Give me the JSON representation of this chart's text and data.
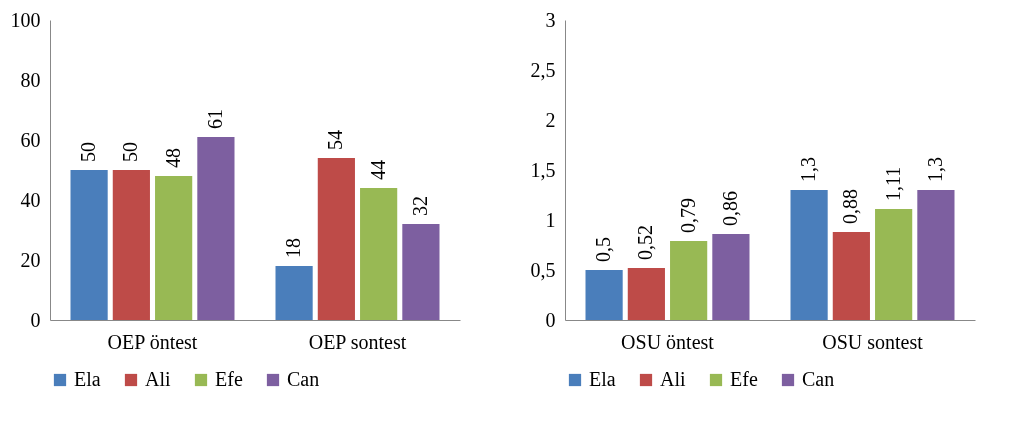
{
  "chart_data": [
    {
      "type": "bar",
      "categories": [
        "OEP öntest",
        "OEP sontest"
      ],
      "ylim": [
        0,
        100
      ],
      "yticks": [
        0,
        20,
        40,
        60,
        80,
        100
      ],
      "grid": false,
      "legend": "bottom",
      "data_labels": true,
      "series": [
        {
          "name": "Ela",
          "color": "#4a7ebb",
          "values": [
            50,
            18
          ]
        },
        {
          "name": "Ali",
          "color": "#be4b48",
          "values": [
            50,
            54
          ]
        },
        {
          "name": "Efe",
          "color": "#98b954",
          "values": [
            48,
            44
          ]
        },
        {
          "name": "Can",
          "color": "#7d5fa0",
          "values": [
            61,
            32
          ]
        }
      ]
    },
    {
      "type": "bar",
      "categories": [
        "OSU öntest",
        "OSU sontest"
      ],
      "ylim": [
        0,
        3
      ],
      "yticks": [
        0,
        {
          "value": 0.5,
          "label": "0,5"
        },
        1,
        {
          "value": 1.5,
          "label": "1,5"
        },
        2,
        {
          "value": 2.5,
          "label": "2,5"
        },
        3
      ],
      "grid": false,
      "legend": "bottom",
      "series": [
        {
          "name": "Ela",
          "color": "#4a7ebb",
          "values": [
            0.5,
            1.3
          ],
          "value_labels": [
            "0,5",
            "1,3"
          ]
        },
        {
          "name": "Ali",
          "color": "#be4b48",
          "values": [
            0.52,
            0.88
          ],
          "value_labels": [
            "0,52",
            "0,88"
          ]
        },
        {
          "name": "Efe",
          "color": "#98b954",
          "values": [
            0.79,
            1.11
          ],
          "value_labels": [
            "0,79",
            "1,11"
          ]
        },
        {
          "name": "Can",
          "color": "#7d5fa0",
          "values": [
            0.86,
            1.3
          ],
          "value_labels": [
            "0,86",
            "1,3"
          ]
        }
      ]
    }
  ]
}
